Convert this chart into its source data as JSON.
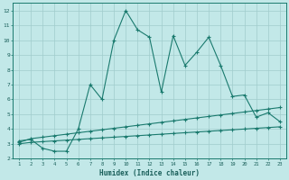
{
  "xlabel": "Humidex (Indice chaleur)",
  "bg_color": "#c2e8e8",
  "grid_color": "#a0cccc",
  "line_color": "#1a7a6e",
  "x_values": [
    1,
    2,
    3,
    4,
    5,
    6,
    7,
    8,
    9,
    10,
    11,
    12,
    13,
    14,
    15,
    16,
    17,
    18,
    19,
    20,
    21,
    22,
    23
  ],
  "line1_y": [
    3.2,
    3.3,
    2.7,
    2.5,
    2.5,
    4.0,
    7.0,
    6.0,
    10.0,
    12.0,
    10.7,
    10.2,
    6.5,
    10.3,
    8.3,
    9.2,
    10.2,
    8.3,
    6.2,
    6.3,
    4.8,
    5.1,
    4.5
  ],
  "line2_y": [
    3.1,
    3.35,
    3.45,
    3.55,
    3.65,
    3.75,
    3.85,
    3.95,
    4.05,
    4.15,
    4.25,
    4.35,
    4.45,
    4.55,
    4.65,
    4.75,
    4.85,
    4.95,
    5.05,
    5.15,
    5.25,
    5.35,
    5.45
  ],
  "line3_y": [
    3.0,
    3.1,
    3.15,
    3.2,
    3.25,
    3.3,
    3.35,
    3.4,
    3.45,
    3.5,
    3.55,
    3.6,
    3.65,
    3.7,
    3.75,
    3.8,
    3.85,
    3.9,
    3.95,
    4.0,
    4.05,
    4.1,
    4.15
  ],
  "ylim": [
    2,
    12.5
  ],
  "xlim": [
    0.5,
    23.5
  ],
  "yticks": [
    2,
    3,
    4,
    5,
    6,
    7,
    8,
    9,
    10,
    11,
    12
  ]
}
